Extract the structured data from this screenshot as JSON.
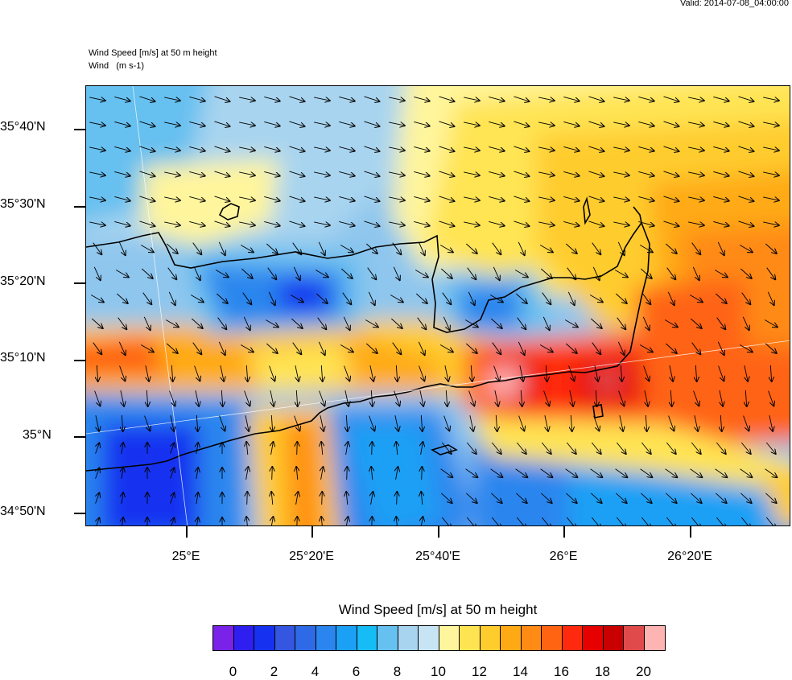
{
  "valid_label": "Valid: 2014-07-08_04:00:00",
  "title_line1": "Wind Speed [m/s] at 50 m height",
  "title_line2": "Wind   (m s-1)",
  "lat_labels": [
    "35°40'N",
    "35°30'N",
    "35°20'N",
    "35°10'N",
    "35°N",
    "34°50'N"
  ],
  "lon_labels": [
    "25°E",
    "25°20'E",
    "25°40'E",
    "26°E",
    "26°20'E"
  ],
  "colorbar": {
    "title": "Wind Speed [m/s] at 50 m height",
    "labels": [
      "0",
      "2",
      "4",
      "6",
      "8",
      "10",
      "12",
      "14",
      "16",
      "18",
      "20"
    ],
    "colors": [
      "#7a22e8",
      "#2e1ef0",
      "#1632f0",
      "#3456e0",
      "#2e6ae6",
      "#2a86ee",
      "#1aa0f5",
      "#16bcf6",
      "#66c0f0",
      "#a8d4ef",
      "#c6e4f4",
      "#fff59c",
      "#ffe452",
      "#ffcc2e",
      "#ffaa14",
      "#ff8a14",
      "#ff6412",
      "#ff2a0e",
      "#e60000",
      "#c80000",
      "#e04a4a",
      "#ffb4b4"
    ]
  },
  "map_colors": {
    "sea_blue": "#2a86ee",
    "deep_blue": "#1632f0",
    "light_blue": "#a8d4ef",
    "pale_yellow": "#fff59c",
    "yellow": "#ffe452",
    "orange": "#ffaa14",
    "dark_orange": "#ff6412",
    "red": "#e60000",
    "pink": "#ffb4b4"
  }
}
